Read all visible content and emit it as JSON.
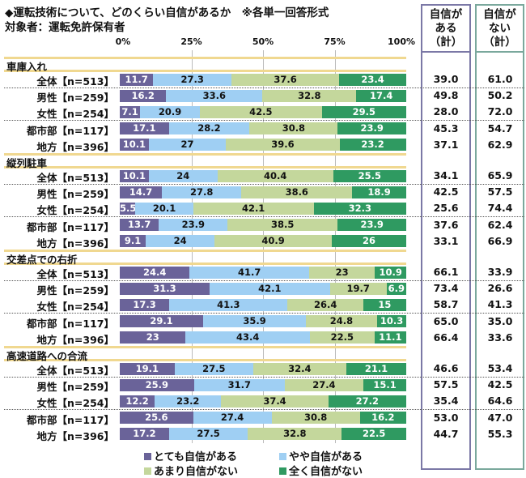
{
  "chart_data": {
    "type": "bar",
    "orientation": "horizontal-stacked-100",
    "title": "◆運転技術について、どのくらい自信があるか　※各単一回答形式",
    "subtitle": "対象者：運転免許保有者",
    "xticks": [
      "0%",
      "25%",
      "50%",
      "75%",
      "100%"
    ],
    "xlim": [
      0,
      100
    ],
    "legend": [
      {
        "name": "とても自信がある",
        "color": "#6a6399"
      },
      {
        "name": "やや自信がある",
        "color": "#9fcff3"
      },
      {
        "name": "あまり自信がない",
        "color": "#c4d79c"
      },
      {
        "name": "全く自信がない",
        "color": "#2f9a61"
      }
    ],
    "summary_headers": [
      [
        "自信が",
        "ある",
        "（計）"
      ],
      [
        "自信が",
        "ない",
        "（計）"
      ]
    ],
    "sections": [
      {
        "name": "車庫入れ",
        "rows": [
          {
            "label": "全体【n=513】",
            "values": [
              11.7,
              27.3,
              37.6,
              23.4
            ],
            "sum": [
              "39.0",
              "61.0"
            ]
          },
          {
            "label": "男性【n=259】",
            "values": [
              16.2,
              33.6,
              32.8,
              17.4
            ],
            "sum": [
              "49.8",
              "50.2"
            ]
          },
          {
            "label": "女性【n=254】",
            "values": [
              7.1,
              20.9,
              42.5,
              29.5
            ],
            "sum": [
              "28.0",
              "72.0"
            ]
          },
          {
            "label": "都市部【n=117】",
            "values": [
              17.1,
              28.2,
              30.8,
              23.9
            ],
            "sum": [
              "45.3",
              "54.7"
            ]
          },
          {
            "label": "地方【n=396】",
            "values": [
              10.1,
              27.0,
              39.6,
              23.2
            ],
            "sum": [
              "37.1",
              "62.9"
            ]
          }
        ]
      },
      {
        "name": "縦列駐車",
        "rows": [
          {
            "label": "全体【n=513】",
            "values": [
              10.1,
              24.0,
              40.4,
              25.5
            ],
            "sum": [
              "34.1",
              "65.9"
            ]
          },
          {
            "label": "男性【n=259】",
            "values": [
              14.7,
              27.8,
              38.6,
              18.9
            ],
            "sum": [
              "42.5",
              "57.5"
            ]
          },
          {
            "label": "女性【n=254】",
            "values": [
              5.5,
              20.1,
              42.1,
              32.3
            ],
            "sum": [
              "25.6",
              "74.4"
            ]
          },
          {
            "label": "都市部【n=117】",
            "values": [
              13.7,
              23.9,
              38.5,
              23.9
            ],
            "sum": [
              "37.6",
              "62.4"
            ]
          },
          {
            "label": "地方【n=396】",
            "values": [
              9.1,
              24.0,
              40.9,
              26.0
            ],
            "sum": [
              "33.1",
              "66.9"
            ]
          }
        ]
      },
      {
        "name": "交差点での右折",
        "rows": [
          {
            "label": "全体【n=513】",
            "values": [
              24.4,
              41.7,
              23.0,
              10.9
            ],
            "sum": [
              "66.1",
              "33.9"
            ]
          },
          {
            "label": "男性【n=259】",
            "values": [
              31.3,
              42.1,
              19.7,
              6.9
            ],
            "sum": [
              "73.4",
              "26.6"
            ]
          },
          {
            "label": "女性【n=254】",
            "values": [
              17.3,
              41.3,
              26.4,
              15.0
            ],
            "sum": [
              "58.7",
              "41.3"
            ]
          },
          {
            "label": "都市部【n=117】",
            "values": [
              29.1,
              35.9,
              24.8,
              10.3
            ],
            "sum": [
              "65.0",
              "35.0"
            ]
          },
          {
            "label": "地方【n=396】",
            "values": [
              23.0,
              43.4,
              22.5,
              11.1
            ],
            "sum": [
              "66.4",
              "33.6"
            ]
          }
        ]
      },
      {
        "name": "高速道路への合流",
        "rows": [
          {
            "label": "全体【n=513】",
            "values": [
              19.1,
              27.5,
              32.4,
              21.1
            ],
            "sum": [
              "46.6",
              "53.4"
            ]
          },
          {
            "label": "男性【n=259】",
            "values": [
              25.9,
              31.7,
              27.4,
              15.1
            ],
            "sum": [
              "57.5",
              "42.5"
            ]
          },
          {
            "label": "女性【n=254】",
            "values": [
              12.2,
              23.2,
              37.4,
              27.2
            ],
            "sum": [
              "35.4",
              "64.6"
            ]
          },
          {
            "label": "都市部【n=117】",
            "values": [
              25.6,
              27.4,
              30.8,
              16.2
            ],
            "sum": [
              "53.0",
              "47.0"
            ]
          },
          {
            "label": "地方【n=396】",
            "values": [
              17.2,
              27.5,
              32.8,
              22.5
            ],
            "sum": [
              "44.7",
              "55.3"
            ]
          }
        ]
      }
    ]
  }
}
